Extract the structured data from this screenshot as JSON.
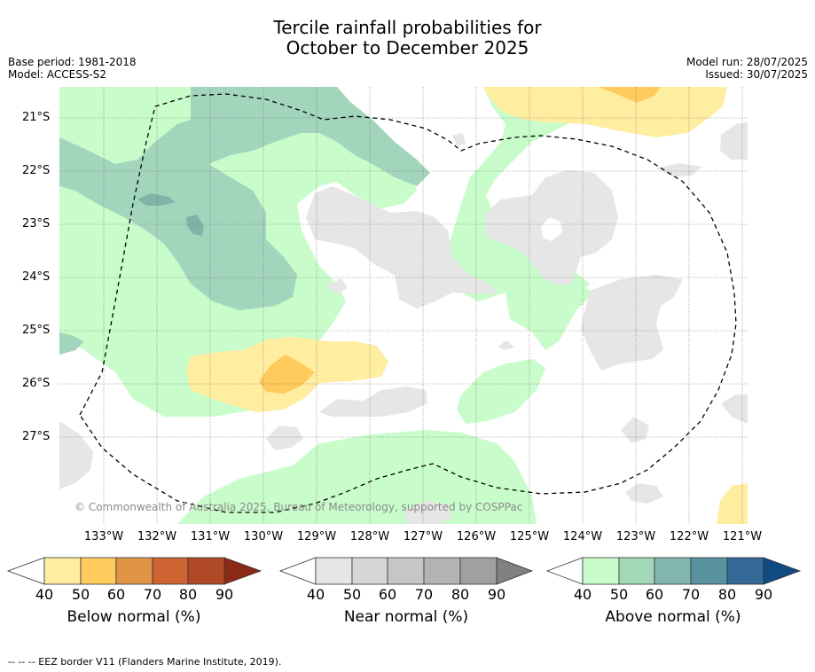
{
  "title_line1": "Tercile rainfall probabilities for",
  "title_line2": "October to December 2025",
  "base_period": "Base period: 1981-2018",
  "model": "Model: ACCESS-S2",
  "model_run": "Model run: 28/07/2025",
  "issued": "Issued: 30/07/2025",
  "copyright": "© Commonwealth of Australia 2025, Bureau of Meteorology, supported by COSPPac",
  "footnote": "--  --  -- EEZ border V11 (Flanders Marine Institute, 2019).",
  "map": {
    "longitude_labels": [
      "133°W",
      "132°W",
      "131°W",
      "130°W",
      "129°W",
      "128°W",
      "127°W",
      "126°W",
      "125°W",
      "124°W",
      "123°W",
      "122°W",
      "121°W"
    ],
    "latitude_labels": [
      "21°S",
      "22°S",
      "23°S",
      "24°S",
      "25°S",
      "26°S",
      "27°S"
    ],
    "regions": [
      {
        "category": "above_normal",
        "level": "40-50",
        "location": "north-west band and central corridor"
      },
      {
        "category": "above_normal",
        "level": "50-60",
        "location": "north-west near 131°W-128°W, 21°S-24.5°S"
      },
      {
        "category": "above_normal",
        "level": "60-70",
        "location": "small patches near 132°W 22.5°S"
      },
      {
        "category": "below_normal",
        "level": "40-50",
        "location": "130°W 26°S and north-east near 125°W-122°W 21°S"
      },
      {
        "category": "below_normal",
        "level": "50-60",
        "location": "130°W 26°S core"
      },
      {
        "category": "near_normal",
        "level": "40-50",
        "location": "central and east scattered patches"
      }
    ]
  },
  "legends": [
    {
      "title": "Below normal (%)",
      "ticks": [
        "40",
        "50",
        "60",
        "70",
        "80",
        "90"
      ],
      "colors": [
        "#ffeda0",
        "#fecb5c",
        "#e09446",
        "#ce6431",
        "#b04a26",
        "#8b2a14"
      ]
    },
    {
      "title": "Near normal (%)",
      "ticks": [
        "40",
        "50",
        "60",
        "70",
        "80",
        "90"
      ],
      "colors": [
        "#e6e6e6",
        "#d6d6d6",
        "#c6c6c6",
        "#b3b3b3",
        "#a0a0a0",
        "#808080"
      ]
    },
    {
      "title": "Above normal (%)",
      "ticks": [
        "40",
        "50",
        "60",
        "70",
        "80",
        "90"
      ],
      "colors": [
        "#c9fccb",
        "#a3d9b8",
        "#82b6ae",
        "#5891a0",
        "#336897",
        "#114a82"
      ]
    }
  ]
}
